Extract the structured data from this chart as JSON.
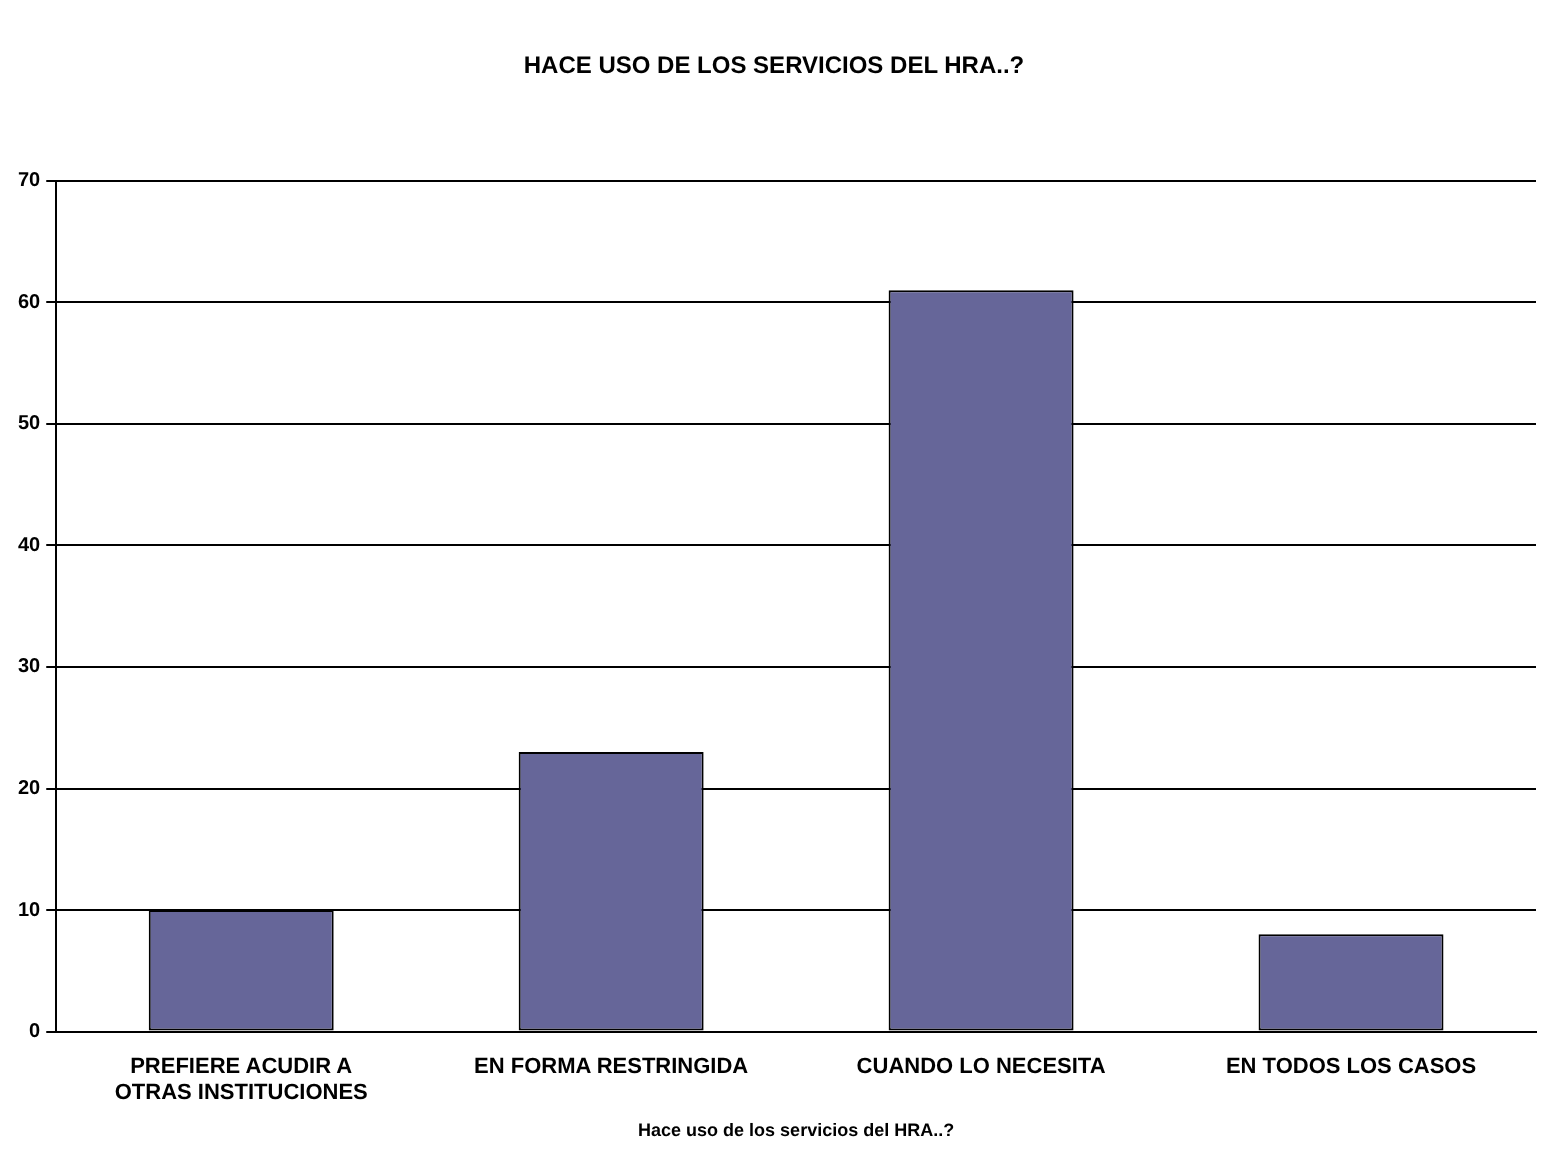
{
  "chart_data": {
    "type": "bar",
    "title": "HACE USO DE LOS SERVICIOS DEL HRA..?",
    "xlabel": "Hace uso de los servicios del HRA..?",
    "categories": [
      "PREFIERE ACUDIR A OTRAS INSTITUCIONES",
      "EN FORMA RESTRINGIDA",
      "CUANDO LO NECESITA",
      "EN TODOS LOS CASOS"
    ],
    "values": [
      10,
      23,
      61,
      8
    ],
    "color": "#666699",
    "ylim": [
      0,
      70
    ],
    "yticks": [
      0,
      10,
      20,
      30,
      40,
      50,
      60,
      70
    ],
    "grid": "y",
    "legend": false
  }
}
